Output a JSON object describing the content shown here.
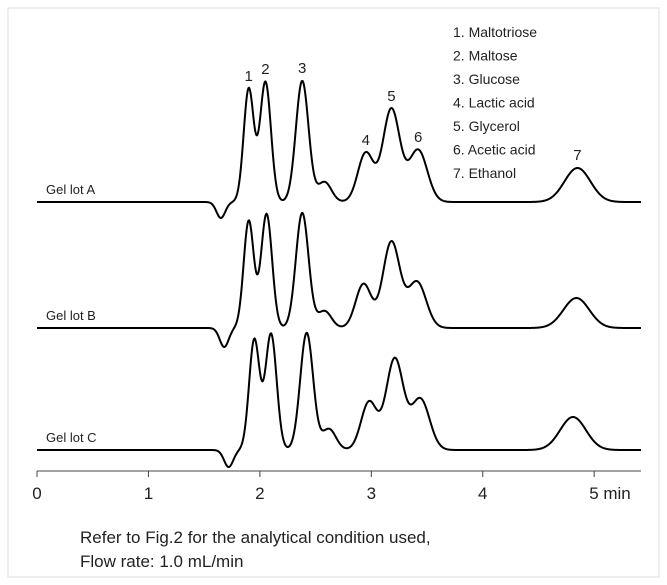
{
  "chart_data": {
    "type": "chromatogram",
    "xlim": [
      0,
      5.42
    ],
    "xticks": [
      0,
      1,
      2,
      3,
      4,
      {
        "value": 5,
        "label": "5 min"
      }
    ],
    "color": "#000000",
    "peak_labels": [
      "1",
      "2",
      "3",
      "4",
      "5",
      "6",
      "7"
    ],
    "legend": [
      "1. Maltotriose",
      "2. Maltose",
      "3. Glucose",
      "4. Lactic acid",
      "5. Glycerol",
      "6. Acetic acid",
      "7. Ethanol"
    ],
    "series": [
      {
        "name": "Gel lot A",
        "x": [
          1.9,
          2.05,
          2.38,
          2.95,
          3.18,
          3.42,
          4.85,
          2.58,
          1.65
        ],
        "values": [
          113,
          120,
          121,
          49,
          93,
          52,
          34,
          20,
          -16
        ]
      },
      {
        "name": "Gel lot B",
        "x": [
          1.9,
          2.06,
          2.38,
          2.93,
          3.18,
          3.41,
          4.84,
          2.58,
          1.68
        ],
        "values": [
          107,
          114,
          115,
          44,
          86,
          46,
          30,
          17,
          -19
        ]
      },
      {
        "name": "Gel lot C",
        "x": [
          1.95,
          2.1,
          2.42,
          2.98,
          3.21,
          3.44,
          4.81,
          2.62,
          1.72
        ],
        "values": [
          110,
          116,
          117,
          48,
          91,
          51,
          33,
          21,
          -17
        ]
      }
    ],
    "caption": [
      "Refer to Fig.2 for the analytical condition used,",
      "Flow rate: 1.0 mL/min"
    ]
  }
}
